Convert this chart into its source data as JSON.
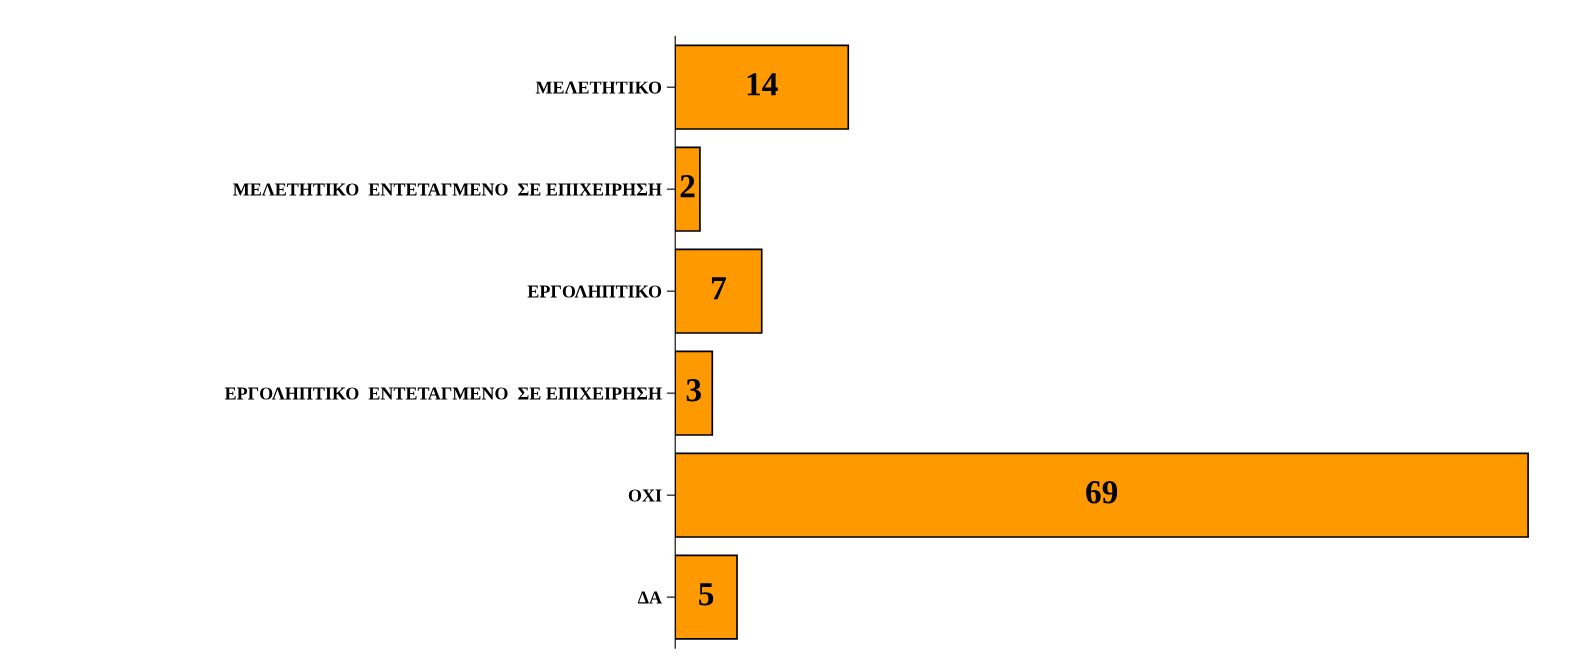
{
  "chart_data": {
    "type": "bar",
    "orientation": "horizontal",
    "categories": [
      "ΜΕΛΕΤΗΤΙΚΟ",
      "ΜΕΛΕΤΗΤΙΚΟ  ΕΝΤΕΤΑΓΜΕΝΟ  ΣΕ ΕΠΙΧΕΙΡΗΣΗ",
      "ΕΡΓΟΛΗΠΤΙΚΟ",
      "ΕΡΓΟΛΗΠΤΙΚΟ  ΕΝΤΕΤΑΓΜΕΝΟ  ΣΕ ΕΠΙΧΕΙΡΗΣΗ",
      "ΟΧΙ",
      "ΔΑ"
    ],
    "values": [
      14,
      2,
      7,
      3,
      69,
      5
    ],
    "color": "#ff9900",
    "data_labels": true,
    "tick_labels": "y"
  }
}
